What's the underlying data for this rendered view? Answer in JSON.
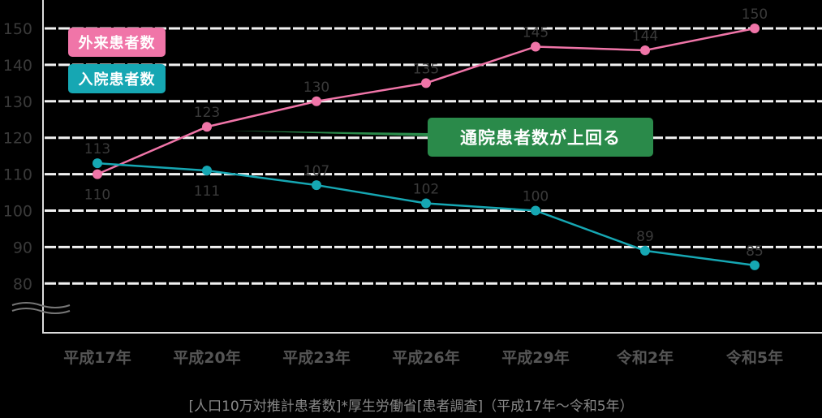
{
  "colors": {
    "outpatient": "#f075a8",
    "inpatient": "#16a7b3",
    "callout": "#2a8a4a",
    "grid": "#f2f2f2",
    "axis": "#dcdcdc"
  },
  "legend": {
    "outpatient_label": "外来患者数",
    "inpatient_label": "入院患者数"
  },
  "callout": {
    "label": "通院患者数が上回る"
  },
  "footer": {
    "source": "[人口10万対推計患者数]*厚生労働省[患者調査]（平成17年～令和5年）"
  },
  "chart_data": {
    "type": "line",
    "title": "",
    "xlabel": "",
    "ylabel": "",
    "categories": [
      "平成17年",
      "平成20年",
      "平成23年",
      "平成26年",
      "平成29年",
      "令和2年",
      "令和5年"
    ],
    "series": [
      {
        "name": "外来患者数",
        "color": "#f075a8",
        "values": [
          110,
          123,
          130,
          135,
          145,
          144,
          150
        ]
      },
      {
        "name": "入院患者数",
        "color": "#16a7b3",
        "values": [
          113,
          111,
          107,
          102,
          100,
          89,
          85
        ]
      }
    ],
    "yticks": [
      150,
      140,
      130,
      120,
      110,
      100,
      90,
      80
    ],
    "ylim": [
      80,
      150
    ],
    "axis_break": true,
    "grid": true,
    "grid_style": "dashed",
    "legend_position": "top-left",
    "annotations": [
      {
        "text": "通院患者数が上回る",
        "near": "平成20年"
      }
    ]
  }
}
